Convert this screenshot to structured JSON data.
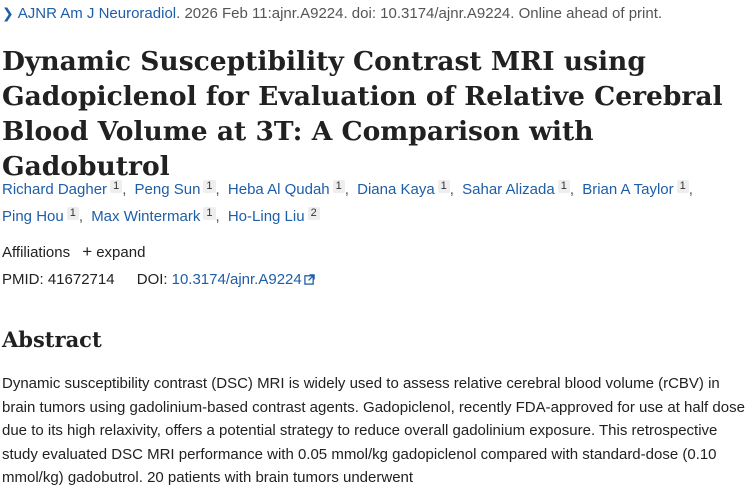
{
  "citation": {
    "journal": "AJNR Am J Neuroradiol",
    "details": ". 2026 Feb 11:ajnr.A9224. doi: 10.3174/ajnr.A9224. Online ahead of print."
  },
  "article": {
    "title": "Dynamic Susceptibility Contrast MRI using Gadopiclenol for Evaluation of Relative Cerebral Blood Volume at 3T: A Comparison with Gadobutrol"
  },
  "authors": [
    {
      "name": "Richard Dagher",
      "affil": "1"
    },
    {
      "name": "Peng Sun",
      "affil": "1"
    },
    {
      "name": "Heba Al Qudah",
      "affil": "1"
    },
    {
      "name": "Diana Kaya",
      "affil": "1"
    },
    {
      "name": "Sahar Alizada",
      "affil": "1"
    },
    {
      "name": "Brian A Taylor",
      "affil": "1"
    },
    {
      "name": "Ping Hou",
      "affil": "1"
    },
    {
      "name": "Max Wintermark",
      "affil": "1"
    },
    {
      "name": "Ho-Ling Liu",
      "affil": "2"
    }
  ],
  "affiliations": {
    "label": "Affiliations",
    "expand_label": "expand"
  },
  "identifiers": {
    "pmid_label": "PMID:",
    "pmid": "41672714",
    "doi_label": "DOI:",
    "doi": "10.3174/ajnr.A9224"
  },
  "abstract": {
    "heading": "Abstract",
    "text": "Dynamic susceptibility contrast (DSC) MRI is widely used to assess relative cerebral blood volume (rCBV) in brain tumors using gadolinium-based contrast agents. Gadopiclenol, recently FDA-approved for use at half dose due to its high relaxivity, offers a potential strategy to reduce overall gadolinium exposure. This retrospective study evaluated DSC MRI performance with 0.05 mmol/kg gadopiclenol compared with standard-dose (0.10 mmol/kg) gadobutrol. 20 patients with brain tumors underwent"
  }
}
